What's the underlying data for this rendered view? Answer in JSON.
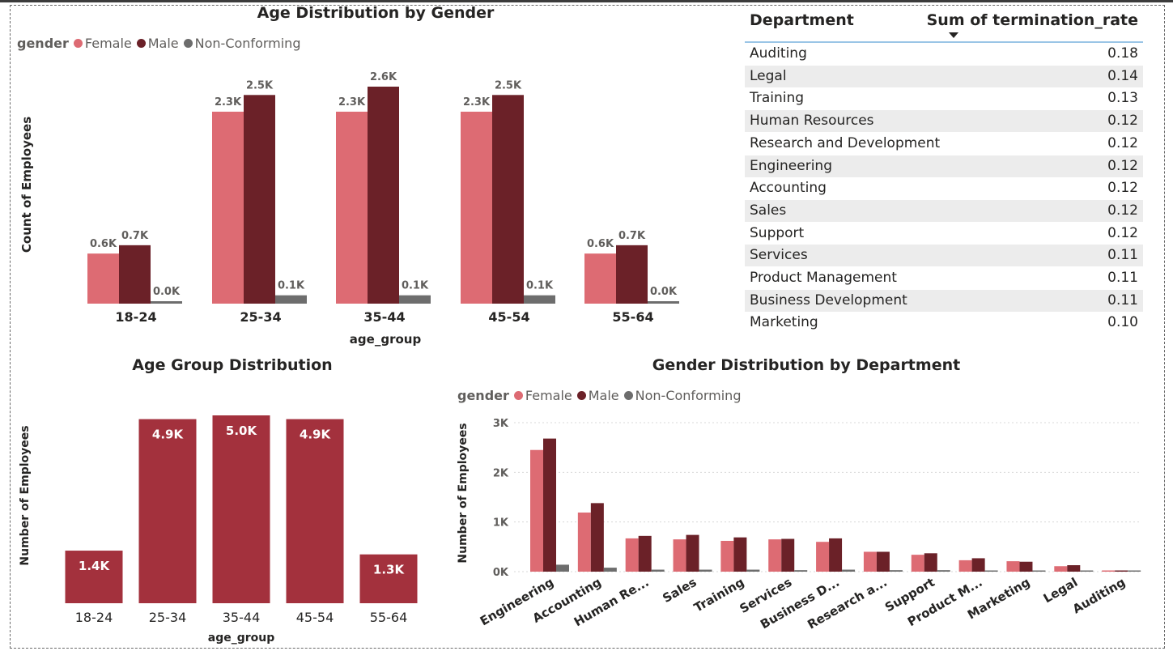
{
  "colors": {
    "female": "#dd6b73",
    "male": "#6b2128",
    "nonconforming": "#6d6d6d",
    "agegroup": "#a3313d"
  },
  "chart1": {
    "title": "Age Distribution by Gender",
    "legend_title": "gender",
    "legend": [
      "Female",
      "Male",
      "Non-Conforming"
    ]
  },
  "chart2": {
    "title": "Age Group Distribution"
  },
  "chart3": {
    "title": "Gender Distribution by Department",
    "legend_title": "gender",
    "legend": [
      "Female",
      "Male",
      "Non-Conforming"
    ]
  },
  "table": {
    "col1": "Department",
    "col2": "Sum of termination_rate",
    "sort": "descending",
    "rows": [
      {
        "dept": "Auditing",
        "rate": "0.18"
      },
      {
        "dept": "Legal",
        "rate": "0.14"
      },
      {
        "dept": "Training",
        "rate": "0.13"
      },
      {
        "dept": "Human Resources",
        "rate": "0.12"
      },
      {
        "dept": "Research and Development",
        "rate": "0.12"
      },
      {
        "dept": "Engineering",
        "rate": "0.12"
      },
      {
        "dept": "Accounting",
        "rate": "0.12"
      },
      {
        "dept": "Sales",
        "rate": "0.12"
      },
      {
        "dept": "Support",
        "rate": "0.12"
      },
      {
        "dept": "Services",
        "rate": "0.11"
      },
      {
        "dept": "Product Management",
        "rate": "0.11"
      },
      {
        "dept": "Business Development",
        "rate": "0.11"
      },
      {
        "dept": "Marketing",
        "rate": "0.10"
      }
    ]
  },
  "chart_data": [
    {
      "type": "bar",
      "title": "Age Distribution by Gender",
      "xlabel": "age_group",
      "ylabel": "Count of Employees",
      "categories": [
        "18-24",
        "25-34",
        "35-44",
        "45-54",
        "55-64"
      ],
      "series": [
        {
          "name": "Female",
          "values": [
            0.6,
            2.3,
            2.3,
            2.3,
            0.6
          ],
          "labels": [
            "0.6K",
            "2.3K",
            "2.3K",
            "2.3K",
            "0.6K"
          ]
        },
        {
          "name": "Male",
          "values": [
            0.7,
            2.5,
            2.6,
            2.5,
            0.7
          ],
          "labels": [
            "0.7K",
            "2.5K",
            "2.6K",
            "2.5K",
            "0.7K"
          ]
        },
        {
          "name": "Non-Conforming",
          "values": [
            0.02,
            0.1,
            0.1,
            0.1,
            0.02
          ],
          "labels": [
            "0.0K",
            "0.1K",
            "0.1K",
            "0.1K",
            "0.0K"
          ]
        }
      ],
      "unit": "thousands",
      "grid": false
    },
    {
      "type": "bar",
      "title": "Age Group Distribution",
      "xlabel": "age_group",
      "ylabel": "Number of Employees",
      "categories": [
        "18-24",
        "25-34",
        "35-44",
        "45-54",
        "55-64"
      ],
      "values": [
        1.4,
        4.9,
        5.0,
        4.9,
        1.3
      ],
      "labels": [
        "1.4K",
        "4.9K",
        "5.0K",
        "4.9K",
        "1.3K"
      ],
      "unit": "thousands",
      "grid": false
    },
    {
      "type": "bar",
      "title": "Gender Distribution by Department",
      "xlabel": "",
      "ylabel": "Number of Employees",
      "categories": [
        "Engineering",
        "Accounting",
        "Human Re...",
        "Sales",
        "Training",
        "Services",
        "Business D...",
        "Research a...",
        "Support",
        "Product M...",
        "Marketing",
        "Legal",
        "Auditing"
      ],
      "series": [
        {
          "name": "Female",
          "values": [
            2450,
            1190,
            670,
            650,
            620,
            650,
            600,
            400,
            340,
            230,
            210,
            110,
            20
          ]
        },
        {
          "name": "Male",
          "values": [
            2680,
            1380,
            720,
            740,
            690,
            660,
            670,
            400,
            370,
            270,
            200,
            130,
            20
          ]
        },
        {
          "name": "Non-Conforming",
          "values": [
            140,
            80,
            40,
            40,
            40,
            30,
            40,
            30,
            30,
            20,
            20,
            10,
            5
          ]
        }
      ],
      "ylim": [
        0,
        3000
      ],
      "yticks": [
        "0K",
        "1K",
        "2K",
        "3K"
      ],
      "grid": true
    }
  ]
}
